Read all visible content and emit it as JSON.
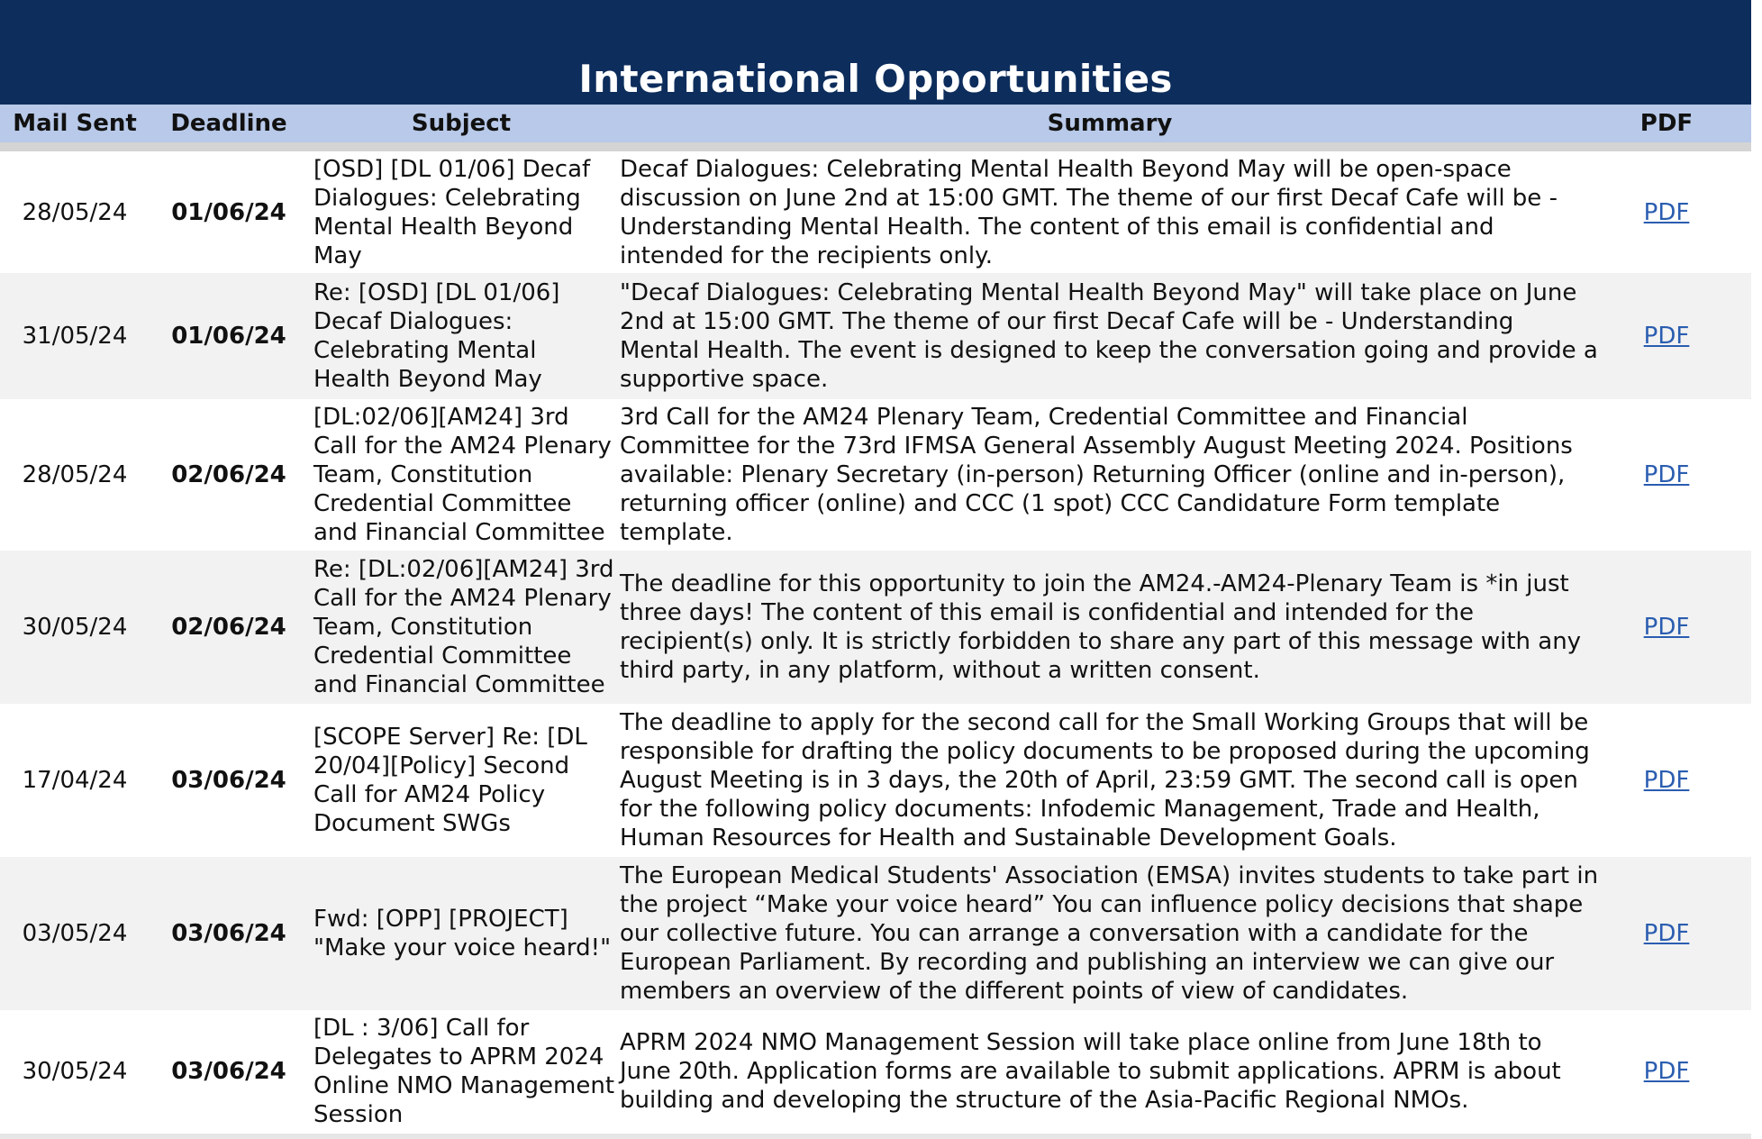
{
  "title": "International Opportunities",
  "columns": {
    "mail_sent": "Mail Sent",
    "deadline": "Deadline",
    "subject": "Subject",
    "summary": "Summary",
    "pdf": "PDF"
  },
  "colors": {
    "banner": "#0d2d5c",
    "header": "#b8c9e9",
    "alt_row": "#f2f2f2",
    "link": "#2a5db0"
  },
  "rows": [
    {
      "mail_sent": "28/05/24",
      "deadline": "01/06/24",
      "subject": "[OSD] [DL 01/06] Decaf Dialogues: Celebrating Mental Health Beyond May",
      "summary": "Decaf Dialogues: Celebrating Mental Health Beyond May will be open-space discussion on June 2nd at 15:00 GMT. The theme of our first Decaf Cafe will be - Understanding Mental Health. The content of this email is confidential and intended for the recipients only.",
      "pdf": "PDF"
    },
    {
      "mail_sent": "31/05/24",
      "deadline": "01/06/24",
      "subject": "Re: [OSD] [DL 01/06] Decaf Dialogues: Celebrating Mental Health Beyond May",
      "summary": "\"Decaf Dialogues: Celebrating Mental Health Beyond May\" will take place on June 2nd at 15:00 GMT. The theme of our first Decaf Cafe will be - Understanding Mental Health. The event is designed to keep the conversation going and provide a supportive space.",
      "pdf": "PDF"
    },
    {
      "mail_sent": "28/05/24",
      "deadline": "02/06/24",
      "subject": "[DL:02/06][AM24] 3rd Call for the AM24 Plenary Team, Constitution Credential Committee and Financial Committee",
      "summary": "3rd Call for the AM24 Plenary Team, Credential Committee and Financial Committee for the 73rd IFMSA General Assembly August Meeting 2024. Positions available: Plenary Secretary (in-person) Returning Officer (online and in-person), returning officer (online) and CCC (1 spot) CCC Candidature Form template template.",
      "pdf": "PDF"
    },
    {
      "mail_sent": "30/05/24",
      "deadline": "02/06/24",
      "subject": "Re: [DL:02/06][AM24] 3rd Call for the AM24 Plenary Team, Constitution Credential Committee and Financial Committee",
      "summary": "The deadline for this opportunity to join the AM24.-AM24-Plenary Team is *in just three days! The content of this email is confidential and intended for the recipient(s) only. It is strictly forbidden to share any part of this message with any third party, in any platform, without a written consent.",
      "pdf": "PDF"
    },
    {
      "mail_sent": "17/04/24",
      "deadline": "03/06/24",
      "subject": "[SCOPE Server] Re: [DL 20/04][Policy] Second Call for AM24 Policy Document SWGs",
      "summary": "The deadline to apply for the second call for the Small Working Groups that will be responsible for drafting the policy documents to be proposed during the upcoming August Meeting is in 3 days, the 20th of April, 23:59 GMT. The second call is open for the following policy documents: Infodemic Management, Trade and Health, Human Resources for Health and Sustainable Development Goals.",
      "pdf": "PDF"
    },
    {
      "mail_sent": "03/05/24",
      "deadline": "03/06/24",
      "subject": "Fwd: [OPP] [PROJECT] \"Make your voice heard!\"",
      "summary": "The European Medical Students' Association (EMSA) invites students to take part in the project “Make your voice heard” You can influence policy decisions that shape our collective future. You can arrange a conversation with a candidate for the European Parliament. By recording and publishing an interview we can give our members an overview of the different points of view of candidates.",
      "pdf": "PDF"
    },
    {
      "mail_sent": "30/05/24",
      "deadline": "03/06/24",
      "subject": "[DL : 3/06] Call for Delegates to APRM 2024 Online NMO Management Session",
      "summary": "APRM 2024 NMO Management Session will take place online from June 18th to June 20th. Application forms are available to submit applications. APRM is about building and developing the structure of the Asia-Pacific Regional NMOs.",
      "pdf": "PDF"
    }
  ]
}
